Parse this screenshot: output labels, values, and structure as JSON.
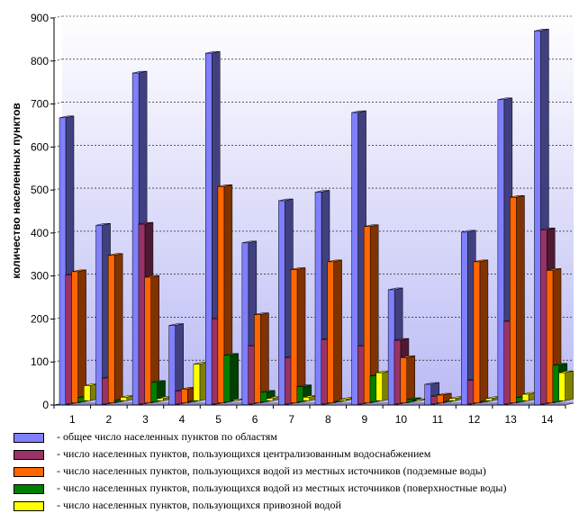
{
  "chart_data": {
    "type": "bar",
    "ylabel": "количество населенных пунктов",
    "xlabel": "",
    "ylim": [
      0,
      900
    ],
    "yticks": [
      0,
      100,
      200,
      300,
      400,
      500,
      600,
      700,
      800,
      900
    ],
    "grid": true,
    "legend_position": "bottom",
    "categories": [
      "1",
      "2",
      "3",
      "4",
      "5",
      "6",
      "7",
      "8",
      "9",
      "10",
      "11",
      "12",
      "13",
      "14"
    ],
    "series": [
      {
        "name": "- общее число населенных пунктов по областям",
        "color": "#8080ff",
        "values": [
          668,
          418,
          772,
          185,
          818,
          377,
          475,
          495,
          680,
          268,
          48,
          402,
          710,
          870
        ]
      },
      {
        "name": "- число населенных пунктов, пользующихся централизованным водоснабжением",
        "color": "#993366",
        "values": [
          300,
          60,
          418,
          30,
          198,
          135,
          108,
          150,
          135,
          148,
          18,
          55,
          192,
          405
        ]
      },
      {
        "name": "- число населенных пунктов, пользующихся водой  из местных источников (подземные воды)",
        "color": "#ff6600",
        "values": [
          305,
          343,
          292,
          32,
          503,
          205,
          310,
          328,
          410,
          105,
          18,
          328,
          478,
          308
        ]
      },
      {
        "name": "- число населенных пунктов, пользующихся водой  из местных источников (поверхностные воды)",
        "color": "#007f00",
        "values": [
          10,
          3,
          45,
          0,
          108,
          22,
          35,
          0,
          60,
          5,
          0,
          0,
          10,
          85
        ]
      },
      {
        "name": "- число населенных пунктов, пользующихся привозной водой",
        "color": "#ffff00",
        "values": [
          35,
          8,
          5,
          85,
          0,
          5,
          8,
          3,
          65,
          0,
          5,
          5,
          15,
          65
        ]
      }
    ]
  }
}
